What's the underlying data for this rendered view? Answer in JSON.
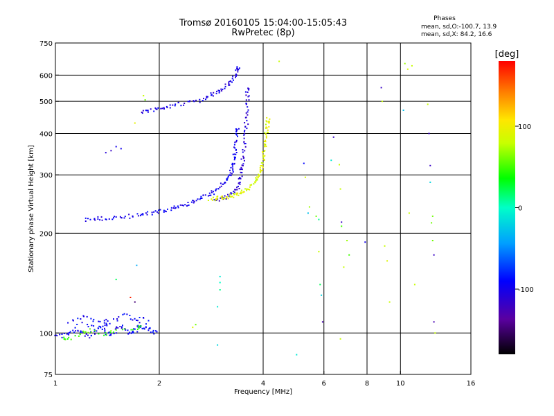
{
  "header": {
    "title_line1": "Tromsø 20160105 15:04:00-15:05:43",
    "title_line2": "RwPretec (8p)"
  },
  "stats": {
    "heading": "Phases",
    "line_o": "mean, sd,O:-100.7, 13.9",
    "line_x": "mean, sd,X:  84.2, 16.6"
  },
  "chart_data": {
    "type": "scatter",
    "title": "Tromsø 20160105 15:04:00-15:05:43",
    "subtitle": "RwPretec (8p)",
    "xlabel": "Frequency [MHz]",
    "ylabel": "Stationary phase Virtual Height [km]",
    "x_scale": "log2",
    "y_scale": "log",
    "xlim": [
      1,
      16
    ],
    "ylim": [
      75,
      750
    ],
    "x_ticks": [
      {
        "v": 1,
        "label": "1"
      },
      {
        "v": 2,
        "label": "2"
      },
      {
        "v": 4,
        "label": "4"
      },
      {
        "v": 6,
        "label": "6"
      },
      {
        "v": 8,
        "label": "8"
      },
      {
        "v": 10,
        "label": "10"
      },
      {
        "v": 16,
        "label": "16"
      }
    ],
    "x_grid": [
      2,
      4,
      6,
      8,
      10
    ],
    "y_ticks": [
      {
        "v": 75,
        "label": "75"
      },
      {
        "v": 100,
        "label": "100"
      },
      {
        "v": 200,
        "label": "200"
      },
      {
        "v": 300,
        "label": "300"
      },
      {
        "v": 400,
        "label": "400"
      },
      {
        "v": 500,
        "label": "500"
      },
      {
        "v": 600,
        "label": "600"
      },
      {
        "v": 750,
        "label": "750"
      }
    ],
    "y_grid": [
      100,
      200,
      300,
      400,
      500,
      600
    ],
    "grid": true,
    "colorbar": {
      "label": "[deg]",
      "range": [
        -180,
        180
      ],
      "ticks": [
        {
          "v": 100,
          "label": "100"
        },
        {
          "v": 0,
          "label": "0"
        },
        {
          "v": -100,
          "label": "-100"
        }
      ]
    },
    "traces": [
      {
        "phase": -100,
        "points": [
          [
            1.22,
            220
          ],
          [
            1.3,
            221
          ],
          [
            1.35,
            221
          ],
          [
            1.45,
            222
          ],
          [
            1.55,
            224
          ],
          [
            1.65,
            225
          ],
          [
            1.75,
            227
          ],
          [
            1.85,
            229
          ],
          [
            1.95,
            231
          ],
          [
            2.05,
            233
          ],
          [
            2.15,
            236
          ],
          [
            2.25,
            239
          ],
          [
            2.35,
            242
          ],
          [
            2.45,
            246
          ],
          [
            2.55,
            250
          ],
          [
            2.65,
            255
          ],
          [
            2.75,
            260
          ],
          [
            2.85,
            266
          ],
          [
            2.95,
            272
          ],
          [
            3.05,
            279
          ],
          [
            3.12,
            286
          ],
          [
            3.18,
            294
          ],
          [
            3.22,
            302
          ],
          [
            3.25,
            312
          ],
          [
            3.27,
            322
          ],
          [
            3.29,
            335
          ],
          [
            3.31,
            350
          ],
          [
            3.33,
            368
          ],
          [
            3.35,
            388
          ],
          [
            3.37,
            412
          ]
        ]
      },
      {
        "phase": -110,
        "points": [
          [
            2.9,
            252
          ],
          [
            3.0,
            254
          ],
          [
            3.1,
            257
          ],
          [
            3.2,
            262
          ],
          [
            3.3,
            268
          ],
          [
            3.38,
            276
          ],
          [
            3.42,
            288
          ],
          [
            3.45,
            300
          ],
          [
            3.47,
            315
          ],
          [
            3.49,
            330
          ],
          [
            3.51,
            350
          ],
          [
            3.53,
            372
          ],
          [
            3.55,
            395
          ],
          [
            3.57,
            420
          ],
          [
            3.59,
            450
          ],
          [
            3.6,
            480
          ],
          [
            3.6,
            510
          ],
          [
            3.6,
            540
          ]
        ]
      },
      {
        "phase": -105,
        "points": [
          [
            1.78,
            465
          ],
          [
            1.85,
            467
          ],
          [
            1.95,
            472
          ],
          [
            2.05,
            478
          ],
          [
            2.15,
            484
          ],
          [
            2.3,
            490
          ],
          [
            2.45,
            496
          ],
          [
            2.6,
            503
          ],
          [
            2.75,
            512
          ],
          [
            2.85,
            522
          ],
          [
            2.95,
            532
          ],
          [
            3.05,
            545
          ],
          [
            3.15,
            560
          ],
          [
            3.25,
            575
          ],
          [
            3.3,
            595
          ],
          [
            3.35,
            615
          ],
          [
            3.4,
            630
          ]
        ]
      },
      {
        "phase": -95,
        "points": [
          [
            1.0,
            99
          ],
          [
            1.05,
            98
          ],
          [
            1.1,
            100
          ],
          [
            1.15,
            103
          ],
          [
            1.2,
            100
          ],
          [
            1.25,
            98
          ],
          [
            1.3,
            101
          ],
          [
            1.35,
            105
          ],
          [
            1.4,
            100
          ],
          [
            1.45,
            99
          ],
          [
            1.5,
            102
          ],
          [
            1.55,
            104
          ],
          [
            1.6,
            101
          ],
          [
            1.65,
            100
          ],
          [
            1.7,
            103
          ],
          [
            1.75,
            106
          ],
          [
            1.8,
            102
          ],
          [
            1.85,
            105
          ],
          [
            1.9,
            101
          ],
          [
            1.95,
            100
          ],
          [
            1.1,
            108
          ],
          [
            1.2,
            112
          ],
          [
            1.3,
            110
          ],
          [
            1.45,
            108
          ],
          [
            1.6,
            113
          ],
          [
            1.7,
            110
          ],
          [
            1.85,
            110
          ],
          [
            1.15,
            106
          ],
          [
            1.4,
            106
          ]
        ]
      },
      {
        "phase": 90,
        "points": [
          [
            2.8,
            253
          ],
          [
            2.9,
            254
          ],
          [
            3.0,
            255
          ],
          [
            3.1,
            257
          ],
          [
            3.2,
            258
          ],
          [
            3.3,
            261
          ],
          [
            3.4,
            264
          ],
          [
            3.5,
            268
          ],
          [
            3.6,
            272
          ],
          [
            3.7,
            278
          ],
          [
            3.8,
            285
          ],
          [
            3.85,
            293
          ],
          [
            3.9,
            302
          ],
          [
            3.95,
            312
          ],
          [
            3.98,
            323
          ],
          [
            4.0,
            336
          ],
          [
            4.02,
            350
          ],
          [
            4.04,
            365
          ],
          [
            4.06,
            380
          ],
          [
            4.08,
            395
          ],
          [
            4.1,
            410
          ],
          [
            4.12,
            425
          ],
          [
            4.14,
            440
          ]
        ]
      },
      {
        "phase": 50,
        "points": [
          [
            1.05,
            97
          ],
          [
            1.1,
            96
          ],
          [
            1.2,
            100
          ],
          [
            1.25,
            102
          ],
          [
            1.4,
            99
          ],
          [
            1.5,
            101
          ],
          [
            1.75,
            104
          ]
        ]
      }
    ],
    "scatter": [
      [
        4.45,
        660,
        80
      ],
      [
        5.25,
        325,
        -90
      ],
      [
        5.3,
        295,
        85
      ],
      [
        5.45,
        240,
        70
      ],
      [
        5.4,
        230,
        -30
      ],
      [
        5.7,
        225,
        60
      ],
      [
        5.8,
        220,
        10
      ],
      [
        6.3,
        332,
        -10
      ],
      [
        6.4,
        390,
        -120
      ],
      [
        6.65,
        322,
        80
      ],
      [
        6.7,
        272,
        80
      ],
      [
        6.75,
        216,
        -120
      ],
      [
        6.75,
        210,
        50
      ],
      [
        6.85,
        158,
        80
      ],
      [
        6.7,
        96,
        80
      ],
      [
        7.0,
        190,
        70
      ],
      [
        7.1,
        172,
        50
      ],
      [
        7.9,
        188,
        -100
      ],
      [
        8.8,
        550,
        -120
      ],
      [
        8.85,
        500,
        80
      ],
      [
        9.0,
        183,
        80
      ],
      [
        9.15,
        165,
        90
      ],
      [
        9.3,
        124,
        80
      ],
      [
        5.0,
        86,
        -10
      ],
      [
        3.0,
        135,
        10
      ],
      [
        3.0,
        142,
        0
      ],
      [
        2.95,
        120,
        -10
      ],
      [
        3.0,
        148,
        -10
      ],
      [
        2.95,
        92,
        -20
      ],
      [
        2.5,
        104,
        90
      ],
      [
        2.55,
        106,
        60
      ],
      [
        1.7,
        124,
        -150
      ],
      [
        1.65,
        128,
        170
      ],
      [
        1.5,
        145,
        20
      ],
      [
        1.72,
        160,
        -40
      ],
      [
        1.8,
        520,
        80
      ],
      [
        1.82,
        505,
        60
      ],
      [
        1.7,
        430,
        95
      ],
      [
        1.4,
        350,
        -110
      ],
      [
        1.45,
        355,
        -120
      ],
      [
        1.55,
        360,
        -100
      ],
      [
        1.5,
        365,
        -100
      ],
      [
        5.8,
        176,
        80
      ],
      [
        5.85,
        140,
        20
      ],
      [
        5.9,
        130,
        -20
      ],
      [
        5.95,
        108,
        -130
      ],
      [
        10.3,
        650,
        70
      ],
      [
        10.5,
        625,
        85
      ],
      [
        10.6,
        230,
        80
      ],
      [
        10.8,
        640,
        80
      ],
      [
        12.0,
        490,
        80
      ],
      [
        12.1,
        400,
        -120
      ],
      [
        12.2,
        320,
        -120
      ],
      [
        12.2,
        285,
        -20
      ],
      [
        12.3,
        215,
        60
      ],
      [
        12.4,
        190,
        60
      ],
      [
        12.5,
        172,
        -120
      ],
      [
        12.5,
        108,
        -130
      ],
      [
        12.6,
        100,
        80
      ],
      [
        10.2,
        470,
        -30
      ],
      [
        12.4,
        225,
        60
      ],
      [
        11.0,
        140,
        80
      ]
    ]
  }
}
